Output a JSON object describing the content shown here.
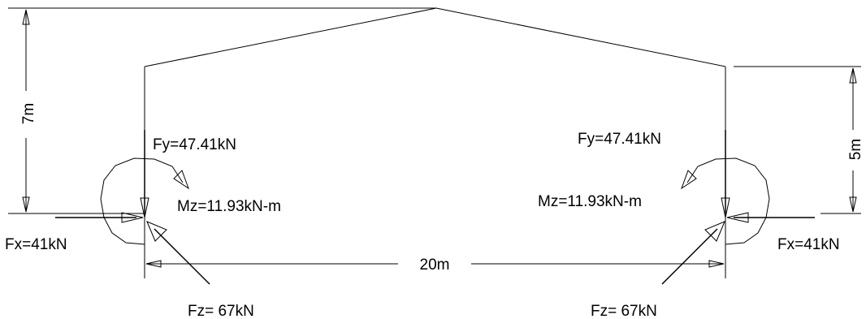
{
  "dimensions": {
    "left_height": "7m",
    "right_height": "5m",
    "span": "20m"
  },
  "left_support": {
    "fy": "Fy=47.41kN",
    "mz": "Mz=11.93kN-m",
    "fx": "Fx=41kN",
    "fz": "Fz= 67kN"
  },
  "right_support": {
    "fy": "Fy=47.41kN",
    "mz": "Mz=11.93kN-m",
    "fx": "Fx=41kN",
    "fz": "Fz= 67kN"
  }
}
